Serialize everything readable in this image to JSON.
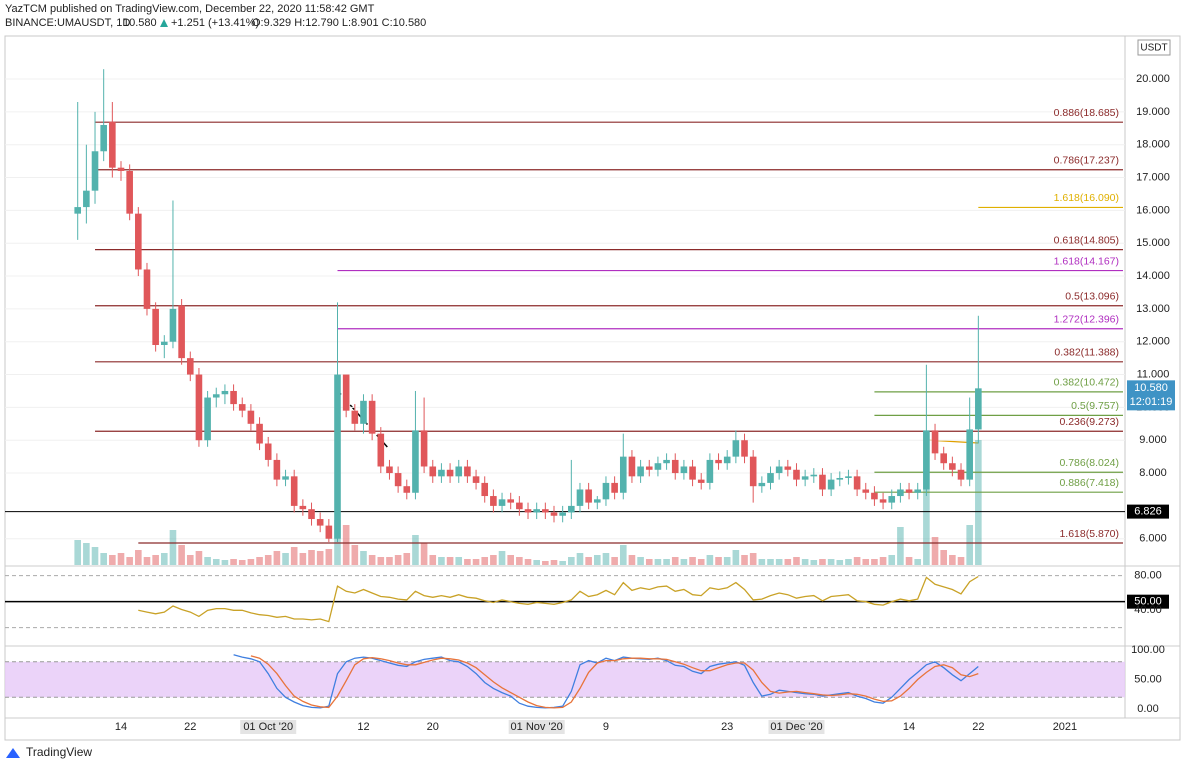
{
  "header": {
    "publisher": "YazTCM published on TradingView.com, December 22, 2020 11:58:42 GMT",
    "symbol": "BINANCE:UMAUSDT, 1D",
    "price": "10.580",
    "change": "+1.251 (+13.41%)",
    "ohlc": "O:9.329 H:12.790 L:8.901 C:10.580"
  },
  "footer": {
    "brand": "TradingView"
  },
  "chart_data": {
    "type": "candlestick",
    "currency": "USDT",
    "up_color": "#53b2ad",
    "down_color": "#e0575a",
    "grid": true,
    "categories": [
      null,
      null,
      null,
      null,
      null,
      "14",
      null,
      null,
      null,
      null,
      null,
      null,
      null,
      "22",
      null,
      null,
      null,
      null,
      null,
      null,
      null,
      null,
      "01 Oct '20",
      null,
      null,
      null,
      null,
      null,
      null,
      null,
      null,
      null,
      null,
      "12",
      null,
      null,
      null,
      null,
      null,
      null,
      null,
      "20",
      null,
      null,
      null,
      null,
      null,
      null,
      null,
      null,
      null,
      null,
      null,
      "01 Nov '20",
      null,
      null,
      null,
      null,
      null,
      null,
      null,
      "9",
      null,
      null,
      null,
      null,
      null,
      null,
      null,
      null,
      null,
      null,
      null,
      null,
      null,
      "23",
      null,
      null,
      null,
      null,
      null,
      null,
      null,
      "01 Dec '20",
      null,
      null,
      null,
      null,
      null,
      null,
      null,
      null,
      null,
      null,
      null,
      null,
      "14",
      null,
      null,
      null,
      null,
      null,
      null,
      null,
      "22",
      null,
      null,
      null,
      null,
      null,
      null,
      null,
      null,
      null,
      "2021"
    ],
    "open": [
      15.9,
      16.1,
      16.6,
      17.8,
      18.7,
      17.3,
      17.2,
      15.9,
      14.2,
      13.0,
      11.9,
      12.0,
      13.1,
      11.5,
      11.0,
      9.0,
      10.3,
      10.4,
      10.5,
      10.1,
      9.9,
      9.5,
      8.9,
      8.4,
      7.8,
      7.9,
      7.0,
      6.9,
      6.6,
      6.4,
      6.0,
      11.0,
      9.9,
      9.5,
      10.2,
      9.2,
      8.2,
      8.0,
      7.6,
      7.4,
      9.3,
      8.2,
      7.9,
      8.1,
      7.9,
      8.2,
      7.9,
      7.7,
      7.3,
      7.0,
      7.2,
      7.1,
      6.9,
      6.8,
      6.9,
      6.8,
      6.7,
      6.8,
      7.0,
      7.5,
      7.1,
      7.2,
      7.7,
      7.4,
      8.5,
      7.9,
      8.2,
      8.1,
      8.3,
      8.4,
      8.0,
      8.2,
      7.8,
      7.7,
      8.4,
      8.3,
      8.5,
      9.0,
      8.5,
      7.6,
      7.7,
      8.0,
      8.2,
      8.1,
      7.8,
      7.9,
      7.95,
      7.5,
      7.8,
      7.85,
      7.9,
      7.5,
      7.4,
      7.2,
      7.1,
      7.3,
      7.5,
      7.4,
      7.5,
      9.3,
      8.6,
      8.3,
      8.1,
      7.8,
      9.329,
      null,
      null,
      null,
      null,
      null,
      null,
      null,
      null,
      null,
      null
    ],
    "high": [
      19.3,
      18.0,
      19.0,
      20.3,
      19.3,
      17.5,
      17.4,
      16.1,
      14.4,
      13.2,
      12.2,
      16.3,
      13.3,
      11.7,
      11.2,
      10.5,
      10.6,
      10.7,
      10.7,
      10.3,
      10.1,
      9.7,
      9.1,
      8.6,
      8.1,
      8.1,
      7.2,
      7.1,
      6.8,
      6.6,
      13.2,
      10.9,
      10.1,
      10.4,
      10.4,
      9.4,
      8.4,
      8.2,
      7.8,
      10.5,
      10.3,
      8.4,
      8.3,
      8.3,
      8.4,
      8.4,
      8.1,
      7.9,
      7.5,
      7.4,
      7.4,
      7.3,
      7.1,
      7.1,
      7.1,
      7.0,
      7.0,
      8.4,
      7.7,
      7.7,
      7.3,
      7.9,
      7.9,
      9.2,
      8.7,
      8.4,
      8.4,
      8.5,
      8.6,
      8.6,
      8.4,
      8.4,
      8.0,
      8.6,
      8.6,
      8.7,
      9.3,
      9.2,
      8.7,
      7.9,
      8.2,
      8.4,
      8.4,
      8.3,
      8.1,
      8.15,
      8.15,
      8.0,
      8.05,
      8.1,
      8.1,
      7.7,
      7.6,
      7.4,
      7.5,
      7.7,
      7.7,
      7.7,
      11.3,
      9.5,
      8.8,
      8.5,
      8.3,
      10.3,
      12.79,
      null,
      null,
      null,
      null,
      null,
      null,
      null,
      null,
      null,
      null
    ],
    "low": [
      15.1,
      15.6,
      16.2,
      17.5,
      17.0,
      16.9,
      15.7,
      14.0,
      12.8,
      11.7,
      11.5,
      11.8,
      11.3,
      10.8,
      8.8,
      8.8,
      10.0,
      10.1,
      9.9,
      9.7,
      9.3,
      8.7,
      8.2,
      7.6,
      7.6,
      6.8,
      6.7,
      6.4,
      6.2,
      5.9,
      5.9,
      9.7,
      9.3,
      9.2,
      9.0,
      8.0,
      7.8,
      7.4,
      7.2,
      7.2,
      8.0,
      7.7,
      7.7,
      7.7,
      7.7,
      7.7,
      7.5,
      7.1,
      6.8,
      6.8,
      6.9,
      6.7,
      6.6,
      6.6,
      6.6,
      6.5,
      6.5,
      6.6,
      6.8,
      6.9,
      6.9,
      7.0,
      7.2,
      7.2,
      7.7,
      7.7,
      7.9,
      7.9,
      8.1,
      7.8,
      7.8,
      7.6,
      7.5,
      7.5,
      8.1,
      8.1,
      8.3,
      8.3,
      7.1,
      7.4,
      7.5,
      7.8,
      7.9,
      7.6,
      7.6,
      7.7,
      7.3,
      7.3,
      7.6,
      7.65,
      7.3,
      7.2,
      7.0,
      6.9,
      6.9,
      7.1,
      7.2,
      7.2,
      7.3,
      8.4,
      8.1,
      7.9,
      7.6,
      7.6,
      8.901,
      null,
      null,
      null,
      null,
      null,
      null,
      null,
      null,
      null,
      null
    ],
    "close": [
      16.1,
      16.6,
      17.8,
      18.6,
      17.3,
      17.2,
      15.9,
      14.2,
      13.0,
      11.9,
      12.0,
      13.0,
      11.5,
      11.0,
      9.0,
      10.3,
      10.4,
      10.5,
      10.1,
      9.9,
      9.5,
      8.9,
      8.4,
      7.8,
      7.9,
      7.0,
      6.9,
      6.6,
      6.4,
      6.0,
      11.0,
      9.9,
      9.5,
      10.2,
      9.2,
      8.2,
      8.0,
      7.6,
      7.4,
      9.3,
      8.2,
      7.9,
      8.1,
      7.9,
      8.2,
      7.9,
      7.7,
      7.3,
      7.0,
      7.2,
      7.1,
      6.9,
      6.8,
      6.9,
      6.8,
      6.7,
      6.8,
      7.0,
      7.5,
      7.1,
      7.2,
      7.7,
      7.4,
      8.5,
      7.9,
      8.2,
      8.1,
      8.3,
      8.4,
      8.0,
      8.2,
      7.8,
      7.7,
      8.4,
      8.3,
      8.5,
      9.0,
      8.5,
      7.6,
      7.7,
      8.0,
      8.2,
      8.1,
      7.8,
      7.9,
      7.95,
      7.5,
      7.8,
      7.85,
      7.9,
      7.5,
      7.4,
      7.2,
      7.1,
      7.3,
      7.5,
      7.4,
      7.5,
      9.3,
      8.6,
      8.3,
      8.1,
      7.8,
      9.329,
      10.58,
      null,
      null,
      null,
      null,
      null,
      null,
      null,
      null,
      null,
      null
    ],
    "volume": [
      25,
      22,
      18,
      12,
      10,
      12,
      8,
      15,
      8,
      10,
      12,
      35,
      20,
      10,
      14,
      8,
      6,
      5,
      6,
      5,
      6,
      8,
      10,
      14,
      12,
      18,
      12,
      15,
      14,
      16,
      45,
      40,
      20,
      14,
      10,
      8,
      8,
      10,
      12,
      30,
      22,
      10,
      8,
      8,
      8,
      6,
      6,
      8,
      10,
      14,
      10,
      8,
      6,
      5,
      4,
      5,
      4,
      8,
      12,
      8,
      10,
      12,
      8,
      20,
      10,
      8,
      6,
      6,
      6,
      8,
      6,
      8,
      6,
      10,
      8,
      8,
      15,
      10,
      12,
      6,
      6,
      6,
      6,
      8,
      6,
      5,
      6,
      6,
      5,
      6,
      8,
      6,
      6,
      8,
      10,
      38,
      8,
      6,
      133,
      28,
      15,
      10,
      8,
      40,
      125,
      null,
      null,
      null,
      null,
      null,
      null,
      null,
      null,
      null,
      null
    ],
    "ylim": [
      5.2,
      21.28
    ],
    "yticks": [
      {
        "value": 6,
        "label": "6.000"
      },
      {
        "value": 8,
        "label": "8.000"
      },
      {
        "value": 9,
        "label": "9.000"
      },
      {
        "value": 10,
        "label": "10.000"
      },
      {
        "value": 11,
        "label": "11.000"
      },
      {
        "value": 12,
        "label": "12.000"
      },
      {
        "value": 13,
        "label": "13.000"
      },
      {
        "value": 14,
        "label": "14.000"
      },
      {
        "value": 15,
        "label": "15.000"
      },
      {
        "value": 16,
        "label": "16.000"
      },
      {
        "value": 17,
        "label": "17.000"
      },
      {
        "value": 18,
        "label": "18.000"
      },
      {
        "value": 19,
        "label": "19.000"
      },
      {
        "value": 20,
        "label": "20.000"
      }
    ],
    "levels": [
      {
        "value": 18.685,
        "label": "0.886(18.685)",
        "color": "#8b2a2a",
        "start": 2
      },
      {
        "value": 17.237,
        "label": "0.786(17.237)",
        "color": "#8b2a2a",
        "start": 2
      },
      {
        "value": 16.09,
        "label": "1.618(16.090)",
        "color": "#e0b000",
        "start": 104
      },
      {
        "value": 14.805,
        "label": "0.618(14.805)",
        "color": "#8b2a2a",
        "start": 2
      },
      {
        "value": 14.167,
        "label": "1.618(14.167)",
        "color": "#b02fc0",
        "start": 30
      },
      {
        "value": 13.096,
        "label": "0.5(13.096)",
        "color": "#8b2a2a",
        "start": 2
      },
      {
        "value": 12.396,
        "label": "1.272(12.396)",
        "color": "#b02fc0",
        "start": 30
      },
      {
        "value": 11.388,
        "label": "0.382(11.388)",
        "color": "#8b2a2a",
        "start": 2
      },
      {
        "value": 10.472,
        "label": "0.382(10.472)",
        "color": "#6f9f45",
        "start": 92
      },
      {
        "value": 9.757,
        "label": "0.5(9.757)",
        "color": "#6f9f45",
        "start": 92
      },
      {
        "value": 9.273,
        "label": "0.236(9.273)",
        "color": "#8b2a2a",
        "start": 2
      },
      {
        "value": 8.024,
        "label": "0.786(8.024)",
        "color": "#6f9f45",
        "start": 92
      },
      {
        "value": 7.418,
        "label": "0.886(7.418)",
        "color": "#6f9f45",
        "start": 92
      },
      {
        "value": 5.87,
        "label": "1.618(5.870)",
        "color": "#8b2a2a",
        "start": 7
      }
    ],
    "marker_line": {
      "value": 6.826,
      "label": "6.826",
      "color": "#000000"
    },
    "last_price": {
      "value": 10.58,
      "label": "10.580",
      "countdown": "12:01:19",
      "color": "#3f93c5"
    },
    "rsi": {
      "color": "#c9a227",
      "ylim": [
        0,
        90
      ],
      "bands": [
        80,
        20
      ],
      "yticks": [
        {
          "value": 80,
          "label": "80.00"
        },
        {
          "value": 50,
          "label": "50.00",
          "boxed": true
        },
        {
          "value": 40,
          "label": "40.00"
        }
      ],
      "values": [
        null,
        null,
        null,
        null,
        null,
        null,
        null,
        40,
        38,
        36,
        38,
        45,
        41,
        38,
        33,
        40,
        42,
        42,
        40,
        40,
        37,
        35,
        34,
        32,
        33,
        30,
        30,
        29,
        30,
        27,
        68,
        62,
        60,
        64,
        60,
        56,
        55,
        53,
        52,
        62,
        57,
        55,
        57,
        55,
        58,
        55,
        54,
        51,
        49,
        52,
        50,
        48,
        47,
        49,
        48,
        47,
        49,
        52,
        62,
        56,
        58,
        63,
        58,
        72,
        63,
        66,
        64,
        67,
        68,
        62,
        64,
        58,
        57,
        66,
        64,
        66,
        72,
        64,
        52,
        53,
        57,
        60,
        58,
        54,
        56,
        57,
        51,
        56,
        57,
        58,
        51,
        50,
        47,
        46,
        50,
        53,
        51,
        53,
        78,
        70,
        67,
        64,
        59,
        73,
        79,
        null,
        null,
        null,
        null,
        null,
        null,
        null,
        null,
        null,
        null
      ]
    },
    "stoch": {
      "ylim": [
        -15,
        105
      ],
      "band": [
        20,
        80
      ],
      "band_color": "#e6c8f7",
      "yticks": [
        {
          "value": 100,
          "label": "100.00"
        },
        {
          "value": 50,
          "label": "50.00"
        },
        {
          "value": 0,
          "label": "0.00"
        }
      ],
      "k": {
        "color": "#3f7fe0",
        "values": [
          null,
          null,
          null,
          null,
          null,
          null,
          null,
          null,
          null,
          null,
          null,
          null,
          null,
          null,
          null,
          null,
          null,
          null,
          92,
          88,
          85,
          80,
          60,
          35,
          20,
          12,
          6,
          3,
          2,
          5,
          60,
          80,
          86,
          88,
          86,
          82,
          78,
          74,
          72,
          80,
          84,
          86,
          88,
          82,
          80,
          72,
          60,
          45,
          35,
          28,
          22,
          10,
          5,
          3,
          2,
          3,
          5,
          30,
          75,
          82,
          78,
          86,
          82,
          88,
          86,
          85,
          84,
          86,
          82,
          74,
          72,
          64,
          60,
          72,
          76,
          78,
          80,
          74,
          45,
          22,
          25,
          32,
          30,
          28,
          26,
          25,
          22,
          24,
          26,
          28,
          22,
          18,
          12,
          10,
          20,
          35,
          50,
          62,
          75,
          80,
          70,
          58,
          48,
          60,
          72,
          null,
          null,
          null,
          null,
          null,
          null,
          null,
          null,
          null,
          null
        ]
      },
      "d": {
        "color": "#e8743b",
        "values": [
          null,
          null,
          null,
          null,
          null,
          null,
          null,
          null,
          null,
          null,
          null,
          null,
          null,
          null,
          null,
          null,
          null,
          null,
          null,
          null,
          90,
          86,
          76,
          60,
          40,
          22,
          13,
          7,
          4,
          3,
          22,
          48,
          75,
          85,
          87,
          85,
          82,
          78,
          75,
          75,
          79,
          83,
          86,
          85,
          83,
          78,
          70,
          58,
          46,
          36,
          28,
          20,
          12,
          6,
          3,
          2,
          3,
          12,
          35,
          62,
          78,
          82,
          82,
          85,
          86,
          86,
          85,
          85,
          84,
          80,
          76,
          70,
          65,
          65,
          70,
          75,
          78,
          78,
          66,
          45,
          30,
          27,
          29,
          30,
          28,
          26,
          24,
          23,
          24,
          26,
          25,
          22,
          17,
          13,
          14,
          22,
          35,
          50,
          62,
          72,
          75,
          70,
          58,
          55,
          60,
          null,
          null,
          null,
          null,
          null,
          null,
          null,
          null,
          null,
          null
        ]
      }
    }
  }
}
